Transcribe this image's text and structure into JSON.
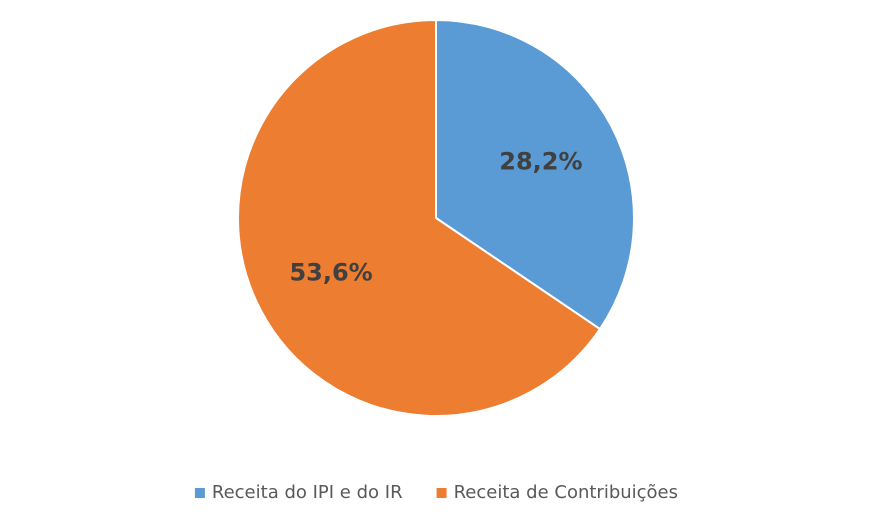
{
  "chart_data": {
    "type": "pie",
    "title": "",
    "slices": [
      {
        "name": "Receita do IPI e do IR",
        "value": 28.2,
        "label": "28,2%",
        "color": "#5b9bd5"
      },
      {
        "name": "Receita de Contribuições",
        "value": 53.6,
        "label": "53,6%",
        "color": "#ed7d31"
      }
    ],
    "legend": "bottom",
    "start_angle": "12 o'clock",
    "direction": "clockwise"
  }
}
